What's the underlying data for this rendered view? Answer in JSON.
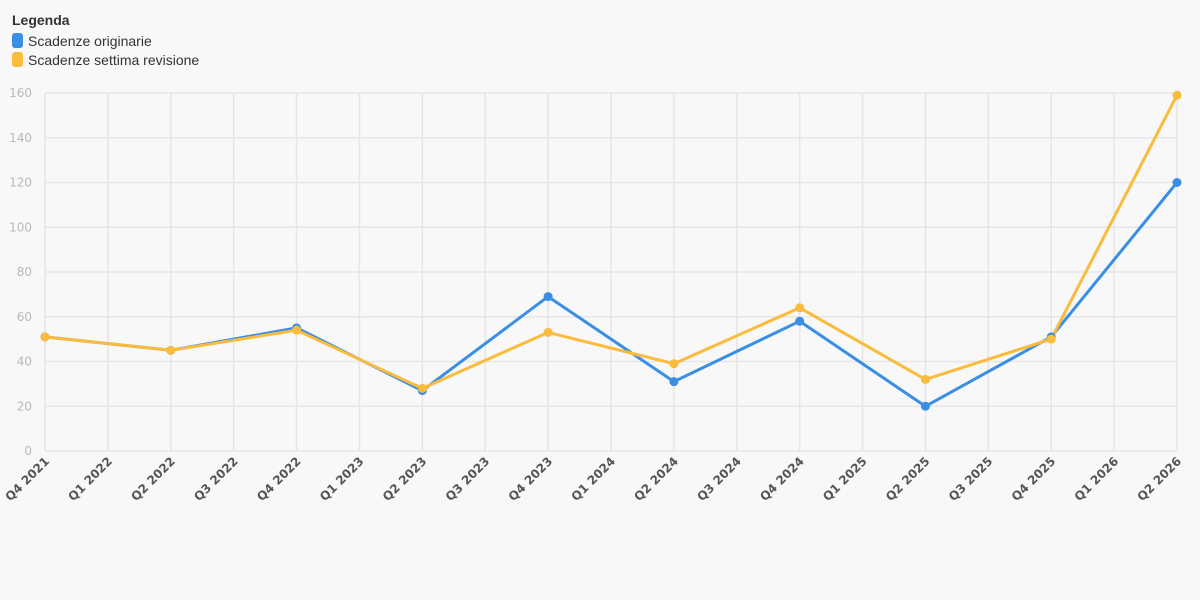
{
  "legend": {
    "title": "Legenda"
  },
  "colors": {
    "grid": "#e6e6e6",
    "series_0": "#3a8ee6",
    "series_1": "#fbbb3c"
  },
  "chart_data": {
    "type": "line",
    "title": "",
    "xlabel": "",
    "ylabel": "",
    "ylim": [
      0,
      160
    ],
    "yticks": [
      0,
      20,
      40,
      60,
      80,
      100,
      120,
      140,
      160
    ],
    "grid": true,
    "legend_position": "top-left",
    "categories": [
      "Q4 2021",
      "Q1 2022",
      "Q2 2022",
      "Q3 2022",
      "Q4 2022",
      "Q1 2023",
      "Q2 2023",
      "Q3 2023",
      "Q4 2023",
      "Q1 2024",
      "Q2 2024",
      "Q3 2024",
      "Q4 2024",
      "Q1 2025",
      "Q2 2025",
      "Q3 2025",
      "Q4 2025",
      "Q1 2026",
      "Q2 2026"
    ],
    "series": [
      {
        "name": "Scadenze originarie",
        "color": "#3a8ee6",
        "points": [
          {
            "x": "Q4 2021",
            "y": 51
          },
          {
            "x": "Q2 2022",
            "y": 45
          },
          {
            "x": "Q4 2022",
            "y": 55
          },
          {
            "x": "Q2 2023",
            "y": 27
          },
          {
            "x": "Q4 2023",
            "y": 69
          },
          {
            "x": "Q2 2024",
            "y": 31
          },
          {
            "x": "Q4 2024",
            "y": 58
          },
          {
            "x": "Q2 2025",
            "y": 20
          },
          {
            "x": "Q4 2025",
            "y": 51
          },
          {
            "x": "Q2 2026",
            "y": 120
          }
        ]
      },
      {
        "name": "Scadenze settima revisione",
        "color": "#fbbb3c",
        "points": [
          {
            "x": "Q4 2021",
            "y": 51
          },
          {
            "x": "Q2 2022",
            "y": 45
          },
          {
            "x": "Q4 2022",
            "y": 54
          },
          {
            "x": "Q2 2023",
            "y": 28
          },
          {
            "x": "Q4 2023",
            "y": 53
          },
          {
            "x": "Q2 2024",
            "y": 39
          },
          {
            "x": "Q4 2024",
            "y": 64
          },
          {
            "x": "Q2 2025",
            "y": 32
          },
          {
            "x": "Q4 2025",
            "y": 50
          },
          {
            "x": "Q2 2026",
            "y": 159
          }
        ]
      }
    ]
  }
}
